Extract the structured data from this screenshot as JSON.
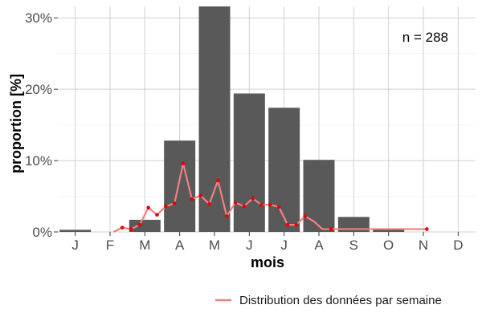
{
  "chart_data": {
    "type": "bar",
    "title": "",
    "xlabel": "mois",
    "ylabel": "proportion [%]",
    "categories": [
      "J",
      "F",
      "M",
      "A",
      "M",
      "J",
      "J",
      "A",
      "S",
      "O",
      "N",
      "D"
    ],
    "values": [
      0.3,
      0,
      1.7,
      12.8,
      31.6,
      19.4,
      17.4,
      10.1,
      2.1,
      0.4,
      0,
      0
    ],
    "y_ticks": [
      0,
      10,
      20,
      30
    ],
    "y_tick_labels": [
      "0%",
      "10%",
      "20%",
      "30%"
    ],
    "ylim": [
      0,
      31.6
    ],
    "grid": true,
    "bar_color": "#595959",
    "annotation": "n = 288",
    "weekly_series": {
      "name": "Distribution des données par semaine",
      "color": "#f08080",
      "point_color": "#e60000",
      "x": [
        2.1,
        2.35,
        2.6,
        2.85,
        3.1,
        3.35,
        3.6,
        3.85,
        4.1,
        4.35,
        4.6,
        4.85,
        5.1,
        5.35,
        5.6,
        5.85,
        6.1,
        6.35,
        6.6,
        6.85,
        7.1,
        7.35,
        7.6,
        7.85,
        8.1,
        8.35,
        8.6,
        8.85,
        9.1,
        9.35,
        9.6,
        9.85,
        10.1,
        10.35,
        10.6,
        10.85,
        11.1
      ],
      "values": [
        0.0,
        0.6,
        0.4,
        1.0,
        3.4,
        2.4,
        3.6,
        4.0,
        9.6,
        4.6,
        5.1,
        3.9,
        7.2,
        2.2,
        4.1,
        3.6,
        4.7,
        3.8,
        3.8,
        3.5,
        1.0,
        1.0,
        2.2,
        1.5,
        0.4,
        0.4,
        0.4,
        0.4,
        0.4,
        0.4,
        0.4,
        0.4,
        0.4,
        0.4,
        0.4,
        0.4,
        0.4
      ],
      "markers": [
        false,
        true,
        true,
        true,
        true,
        true,
        true,
        true,
        true,
        true,
        true,
        true,
        true,
        true,
        true,
        true,
        true,
        true,
        true,
        true,
        true,
        true,
        true,
        false,
        false,
        true,
        false,
        false,
        false,
        false,
        false,
        false,
        false,
        false,
        false,
        false,
        true
      ]
    },
    "legend_position": "bottom-right"
  }
}
